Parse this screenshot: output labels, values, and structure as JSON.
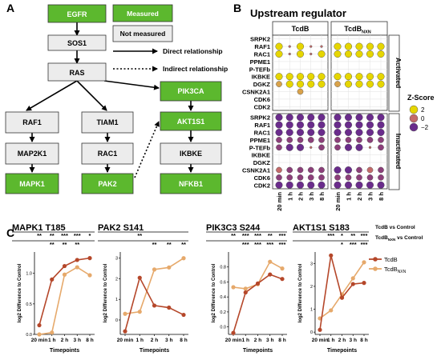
{
  "panel_labels": {
    "a": "A",
    "b": "B",
    "c": "C"
  },
  "pathway": {
    "nodes": {
      "egfr": "EGFR",
      "sos1": "SOS1",
      "ras": "RAS",
      "raf1": "RAF1",
      "tiam1": "TIAM1",
      "pik3ca": "PIK3CA",
      "map2k1": "MAP2K1",
      "rac1": "RAC1",
      "akt1s1": "AKT1S1",
      "mapk1": "MAPK1",
      "pak2": "PAK2",
      "ikbke": "IKBKE",
      "nfkb1": "NFKB1"
    },
    "legend": {
      "measured": "Measured",
      "not_measured": "Not measured",
      "direct": "Direct relationship",
      "indirect": "Indirect relationship"
    },
    "colors": {
      "measured": "#5cb82e",
      "not_measured": "#ececec"
    }
  },
  "upstream": {
    "title": "Upstream regulator",
    "col_headers": [
      "TcdB",
      "TcdB",
      "NXN"
    ],
    "timepoints": [
      "20 min",
      "1 h",
      "2 h",
      "3 h",
      "8 h"
    ],
    "regulators": [
      "SRPK2",
      "RAF1",
      "RAC1",
      "PPME1",
      "P-TEFb",
      "IKBKE",
      "DGKZ",
      "CSNK2A1",
      "CDK6",
      "CDK2"
    ],
    "activated_label": "Activated",
    "inactivated_label": "Inactivated",
    "legend_title": "Z-Score",
    "legend_items": [
      "2",
      "0",
      "−2"
    ],
    "colors": {
      "high": "#e6d600",
      "mid": "#c46a6a",
      "low": "#6a2c8c"
    }
  },
  "line_legend": {
    "sig_header_1": "TcdB vs Control",
    "sig_header_2a": "TcdB",
    "sig_header_2b": "NXN",
    "sig_header_2c": " vs Control",
    "series1": "TcdB",
    "series2a": "TcdB",
    "series2b": "NXN",
    "color1": "#b5472a",
    "color2": "#e6a96b"
  },
  "chart_data": [
    {
      "type": "line",
      "title": "MAPK1 T185",
      "x": [
        "20 min",
        "1 h",
        "2 h",
        "3 h",
        "8 h"
      ],
      "ylim": [
        0,
        1.35
      ],
      "yticks": [
        0.0,
        0.5,
        1.0
      ],
      "xlabel": "Timepoints",
      "ylabel": "log2 Difference to Control",
      "sig1": [
        "**",
        "**",
        "***",
        "***",
        "*"
      ],
      "sig2": [
        "",
        "**",
        "**",
        "**",
        ""
      ],
      "series": [
        {
          "name": "TcdB",
          "values": [
            0.15,
            0.9,
            1.12,
            1.22,
            1.25
          ]
        },
        {
          "name": "TcdB_NXN",
          "values": [
            0.0,
            0.03,
            0.98,
            1.1,
            0.97
          ]
        }
      ]
    },
    {
      "type": "line",
      "title": "PAK2 S141",
      "x": [
        "20 min",
        "1 h",
        "2 h",
        "3 h",
        "8 h"
      ],
      "ylim": [
        -0.7,
        3.3
      ],
      "yticks": [
        0,
        1,
        2,
        3
      ],
      "xlabel": "Timepoints",
      "ylabel": "log2 Difference to Control",
      "sig1": [
        "",
        "**",
        "",
        "",
        ""
      ],
      "sig2": [
        "",
        "",
        "**",
        "**",
        "**"
      ],
      "series": [
        {
          "name": "TcdB",
          "values": [
            -0.55,
            2.05,
            0.7,
            0.6,
            0.25
          ]
        },
        {
          "name": "TcdB_NXN",
          "values": [
            0.3,
            0.4,
            2.45,
            2.55,
            3.0
          ]
        }
      ]
    },
    {
      "type": "line",
      "title": "PIK3C3 S244",
      "x": [
        "20 min",
        "1 h",
        "2 h",
        "3 h",
        "8 h"
      ],
      "ylim": [
        -0.1,
        1.0
      ],
      "yticks": [
        0.0,
        0.2,
        0.4,
        0.6,
        0.8
      ],
      "xlabel": "Timepoints",
      "ylabel": "log2 Difference to Control",
      "sig1": [
        "**",
        "***",
        "***",
        "**",
        "***"
      ],
      "sig2": [
        "",
        "***",
        "***",
        "***",
        "***"
      ],
      "series": [
        {
          "name": "TcdB",
          "values": [
            -0.08,
            0.46,
            0.58,
            0.7,
            0.64
          ]
        },
        {
          "name": "TcdB_NXN",
          "values": [
            0.53,
            0.51,
            0.57,
            0.87,
            0.78
          ]
        }
      ]
    },
    {
      "type": "line",
      "title": "AKT1S1 S183",
      "x": [
        "20 min",
        "1 h",
        "2 h",
        "3 h",
        "8 h"
      ],
      "ylim": [
        -0.1,
        3.5
      ],
      "yticks": [
        0,
        1,
        2,
        3
      ],
      "xlabel": "Timepoints",
      "ylabel": "log2 Difference to Control",
      "sig1": [
        "",
        "***",
        "*",
        "**",
        "***"
      ],
      "sig2": [
        "",
        "",
        "*",
        "***",
        "***"
      ],
      "series": [
        {
          "name": "TcdB",
          "values": [
            0.1,
            3.35,
            1.5,
            2.1,
            2.15
          ]
        },
        {
          "name": "TcdB_NXN",
          "values": [
            0.6,
            0.95,
            1.65,
            2.35,
            3.05
          ]
        }
      ]
    }
  ]
}
